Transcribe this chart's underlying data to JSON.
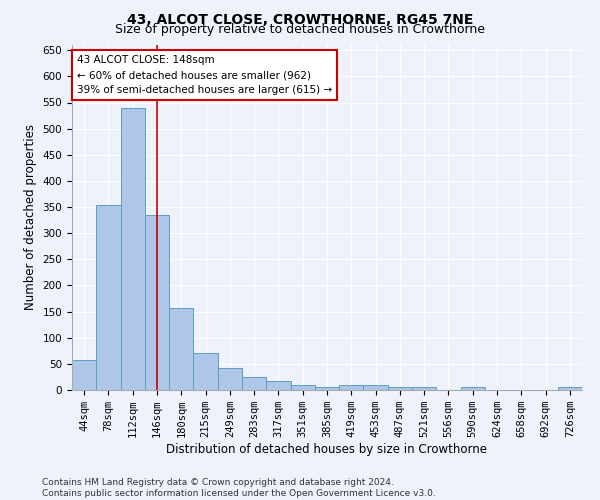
{
  "title": "43, ALCOT CLOSE, CROWTHORNE, RG45 7NE",
  "subtitle": "Size of property relative to detached houses in Crowthorne",
  "xlabel": "Distribution of detached houses by size in Crowthorne",
  "ylabel": "Number of detached properties",
  "categories": [
    "44sqm",
    "78sqm",
    "112sqm",
    "146sqm",
    "180sqm",
    "215sqm",
    "249sqm",
    "283sqm",
    "317sqm",
    "351sqm",
    "385sqm",
    "419sqm",
    "453sqm",
    "487sqm",
    "521sqm",
    "556sqm",
    "590sqm",
    "624sqm",
    "658sqm",
    "692sqm",
    "726sqm"
  ],
  "values": [
    57,
    353,
    540,
    335,
    157,
    70,
    43,
    25,
    17,
    10,
    5,
    9,
    10,
    5,
    5,
    0,
    5,
    0,
    0,
    0,
    5
  ],
  "bar_color": "#aec6e8",
  "bar_edge_color": "#5a9fc3",
  "property_label": "43 ALCOT CLOSE: 148sqm",
  "annotation_line1": "← 60% of detached houses are smaller (962)",
  "annotation_line2": "39% of semi-detached houses are larger (615) →",
  "vline_color": "#cc0000",
  "vline_x_index": 3.0,
  "annotation_box_color": "#ffffff",
  "annotation_box_edge_color": "#cc0000",
  "ylim": [
    0,
    660
  ],
  "yticks": [
    0,
    50,
    100,
    150,
    200,
    250,
    300,
    350,
    400,
    450,
    500,
    550,
    600,
    650
  ],
  "background_color": "#eef2fb",
  "grid_color": "#ffffff",
  "footer_line1": "Contains HM Land Registry data © Crown copyright and database right 2024.",
  "footer_line2": "Contains public sector information licensed under the Open Government Licence v3.0.",
  "title_fontsize": 10,
  "subtitle_fontsize": 9,
  "xlabel_fontsize": 8.5,
  "ylabel_fontsize": 8.5,
  "tick_fontsize": 7.5,
  "annotation_fontsize": 7.5,
  "footer_fontsize": 6.5
}
